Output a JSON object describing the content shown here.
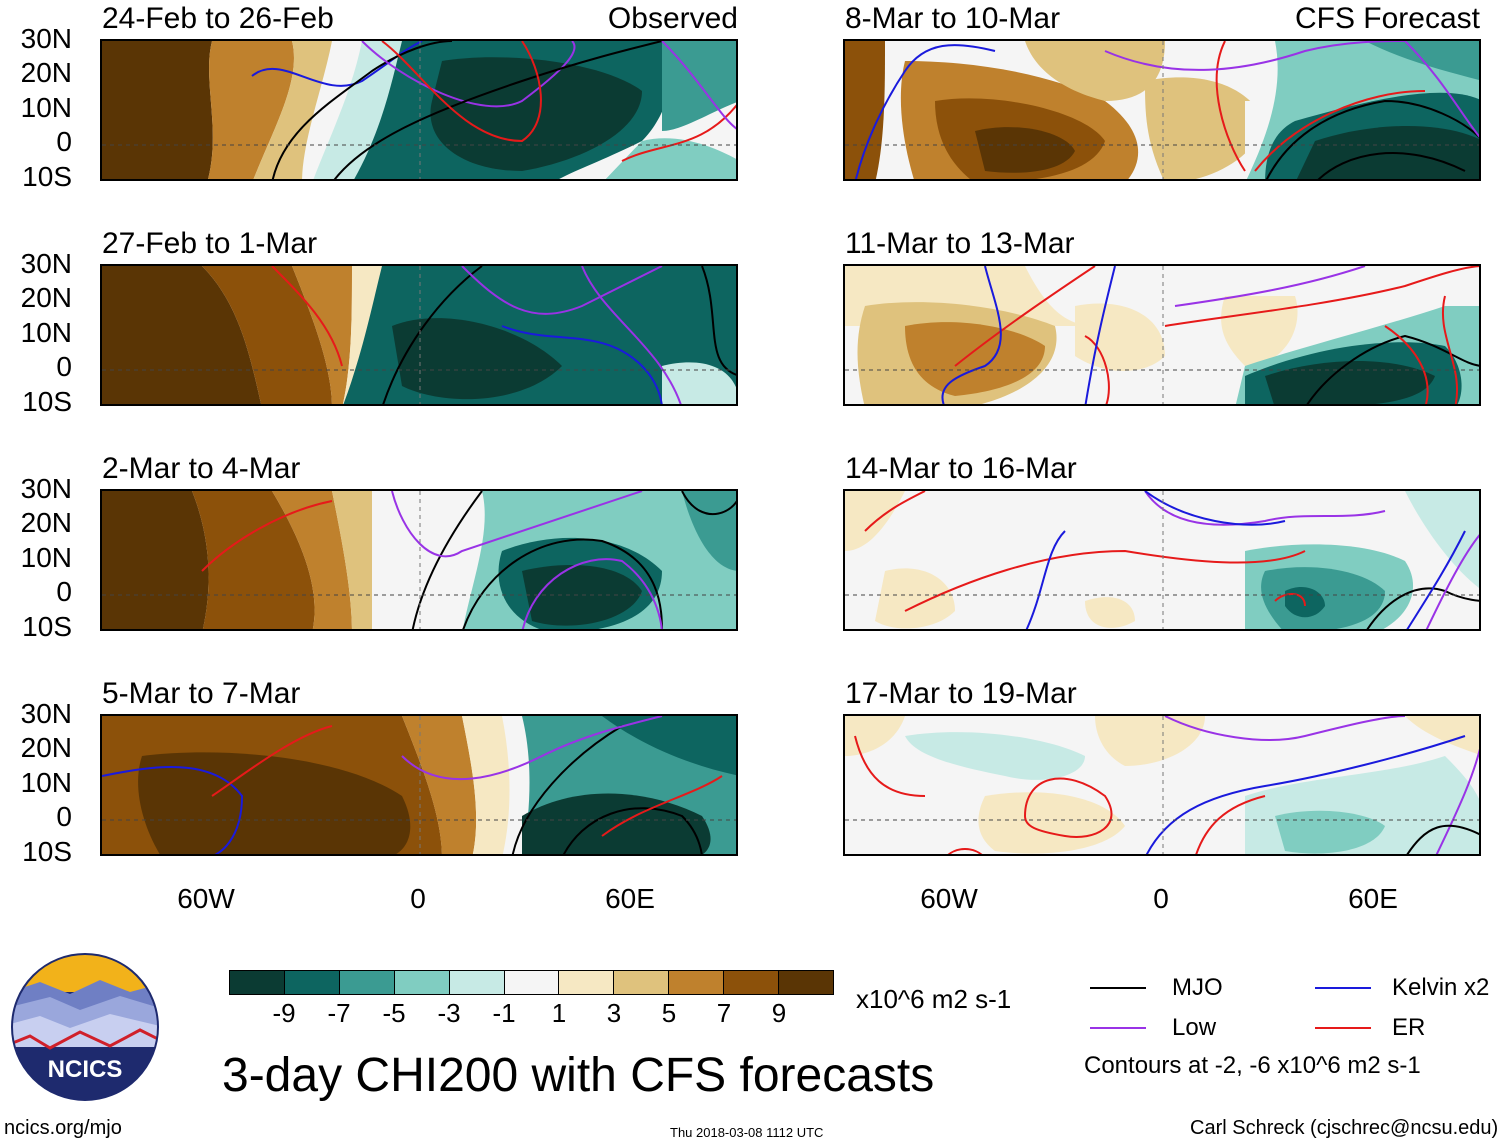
{
  "main_title": "3-day CHI200 with CFS forecasts",
  "observed_tag": "Observed",
  "forecast_tag": "CFS Forecast",
  "panels_left": [
    {
      "title": "24-Feb to 26-Feb"
    },
    {
      "title": "27-Feb to 1-Mar"
    },
    {
      "title": "2-Mar to 4-Mar"
    },
    {
      "title": "5-Mar to 7-Mar"
    }
  ],
  "panels_right": [
    {
      "title": "8-Mar to 10-Mar"
    },
    {
      "title": "11-Mar to 13-Mar"
    },
    {
      "title": "14-Mar to 16-Mar"
    },
    {
      "title": "17-Mar to 19-Mar"
    }
  ],
  "lat_labels": [
    "30N",
    "20N",
    "10N",
    "0",
    "10S"
  ],
  "lon_labels": [
    "60W",
    "0",
    "60E"
  ],
  "colorbar": {
    "colors": [
      "#0b3b33",
      "#0d6560",
      "#3b9b92",
      "#80cdc1",
      "#c7eae5",
      "#f5f5f5",
      "#f6e8c3",
      "#dfc27d",
      "#bf812d",
      "#8c510a",
      "#5a3505"
    ],
    "labels": [
      "-9",
      "-7",
      "-5",
      "-3",
      "-1",
      "1",
      "3",
      "5",
      "7",
      "9"
    ],
    "units": "x10^6 m2 s-1"
  },
  "legend": {
    "mjo": {
      "label": "MJO",
      "color": "#000000"
    },
    "kelvin": {
      "label": "Kelvin x2",
      "color": "#1a1adc"
    },
    "low": {
      "label": "Low",
      "color": "#9933e6"
    },
    "er": {
      "label": "ER",
      "color": "#e61a1a"
    },
    "contour_note": "Contours at -2, -6 x10^6 m2 s-1"
  },
  "logo": {
    "text": "NCICS"
  },
  "footer": {
    "left": "ncics.org/mjo",
    "center": "Thu 2018-03-08 1112 UTC",
    "right": "Carl Schreck (cjschrec@ncsu.edu)"
  }
}
